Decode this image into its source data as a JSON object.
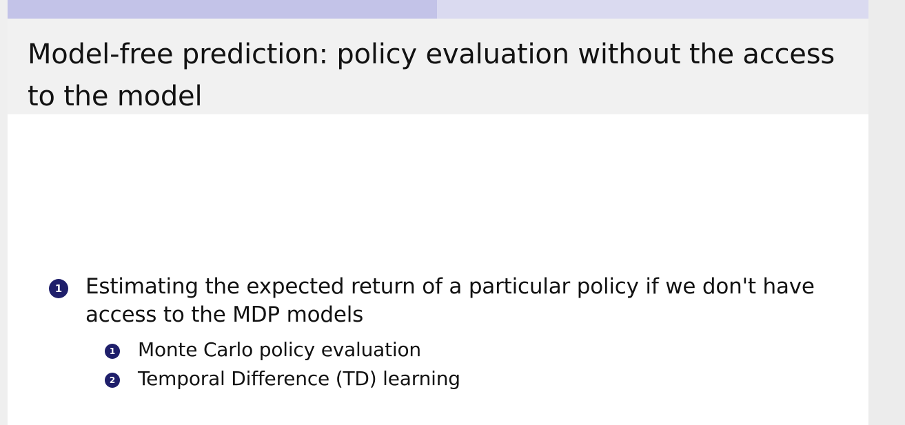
{
  "slide": {
    "title": "Model-free prediction: policy evaluation without the access to the model",
    "items": [
      {
        "number": "1",
        "text": "Estimating the expected return of a particular policy if we don't have access to the MDP models",
        "subitems": [
          {
            "number": "1",
            "text": "Monte Carlo policy evaluation"
          },
          {
            "number": "2",
            "text": "Temporal Difference (TD) learning"
          }
        ]
      }
    ]
  },
  "colors": {
    "bullet": "#1f1f6b",
    "nav_active": "#c3c3e8",
    "nav_inactive": "#dadaf0",
    "title_background": "#f1f1f1",
    "slide_background": "#ffffff"
  }
}
